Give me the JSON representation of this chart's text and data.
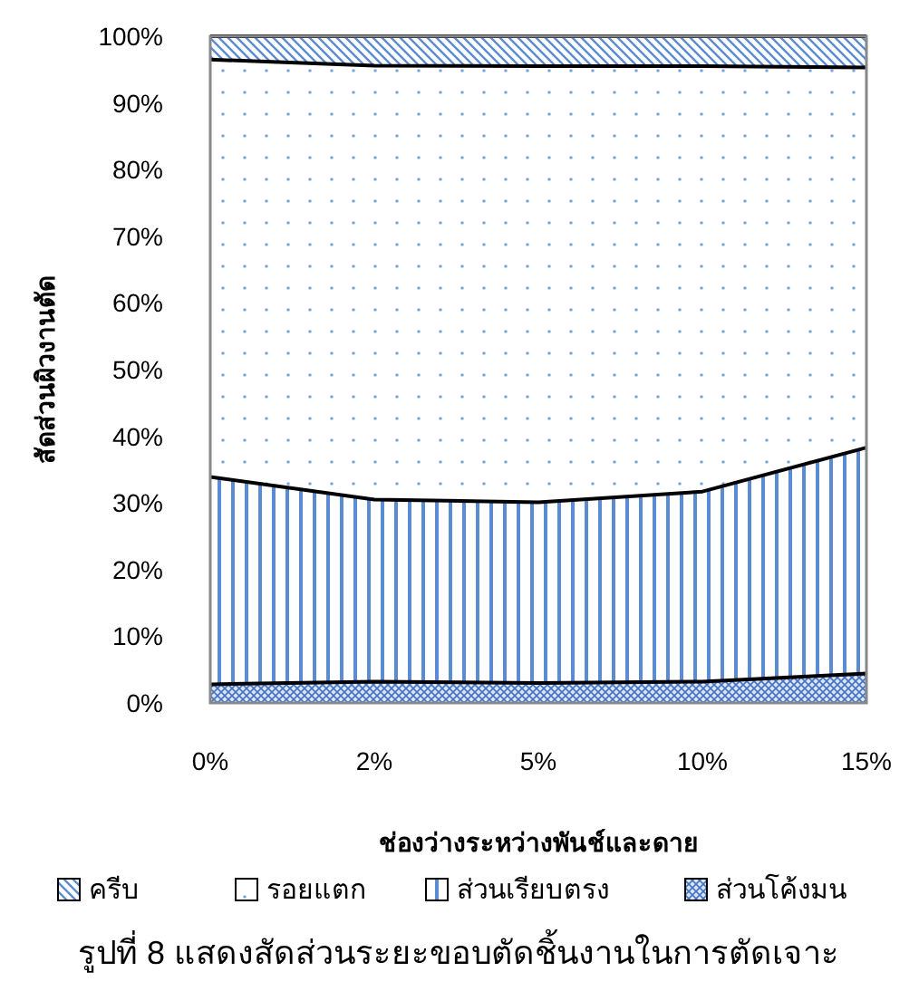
{
  "chart_data": {
    "type": "area",
    "stacked": true,
    "xlabel": "ช่องว่างระหว่างพันช์และดาย",
    "ylabel": "สัดส่วนผิวงานตัด",
    "categories": [
      "0%",
      "2%",
      "5%",
      "10%",
      "15%"
    ],
    "series": [
      {
        "name": "ส่วนโค้งมน",
        "color": "#4472c4",
        "values": [
          2.8,
          3.2,
          3.0,
          3.2,
          4.4
        ]
      },
      {
        "name": "ส่วนเรียบตรง",
        "color": "#5b8bd0",
        "values": [
          31.1,
          27.3,
          27.1,
          28.5,
          33.9
        ]
      },
      {
        "name": "รอยแตก",
        "color": "#7fa6dd",
        "values": [
          62.6,
          65.1,
          65.4,
          63.8,
          57.0
        ]
      },
      {
        "name": "ครีบ",
        "color": "#5b8bd0",
        "values": [
          3.5,
          4.4,
          4.5,
          4.5,
          4.7
        ]
      }
    ],
    "ylim": [
      0,
      100
    ],
    "yticks": [
      {
        "value": 0,
        "label": "0%"
      },
      {
        "value": 10,
        "label": "10%"
      },
      {
        "value": 20,
        "label": "20%"
      },
      {
        "value": 30,
        "label": "30%"
      },
      {
        "value": 40,
        "label": "40%"
      },
      {
        "value": 50,
        "label": "50%"
      },
      {
        "value": 60,
        "label": "60%"
      },
      {
        "value": 70,
        "label": "70%"
      },
      {
        "value": 80,
        "label": "80%"
      },
      {
        "value": 90,
        "label": "90%"
      },
      {
        "value": 100,
        "label": "100%"
      }
    ],
    "legend": "bottom",
    "annotations": [
      "รูปที่ 8 แสดงสัดส่วนระยะขอบตัดชิ้นงานในการตัดเจาะ"
    ]
  }
}
